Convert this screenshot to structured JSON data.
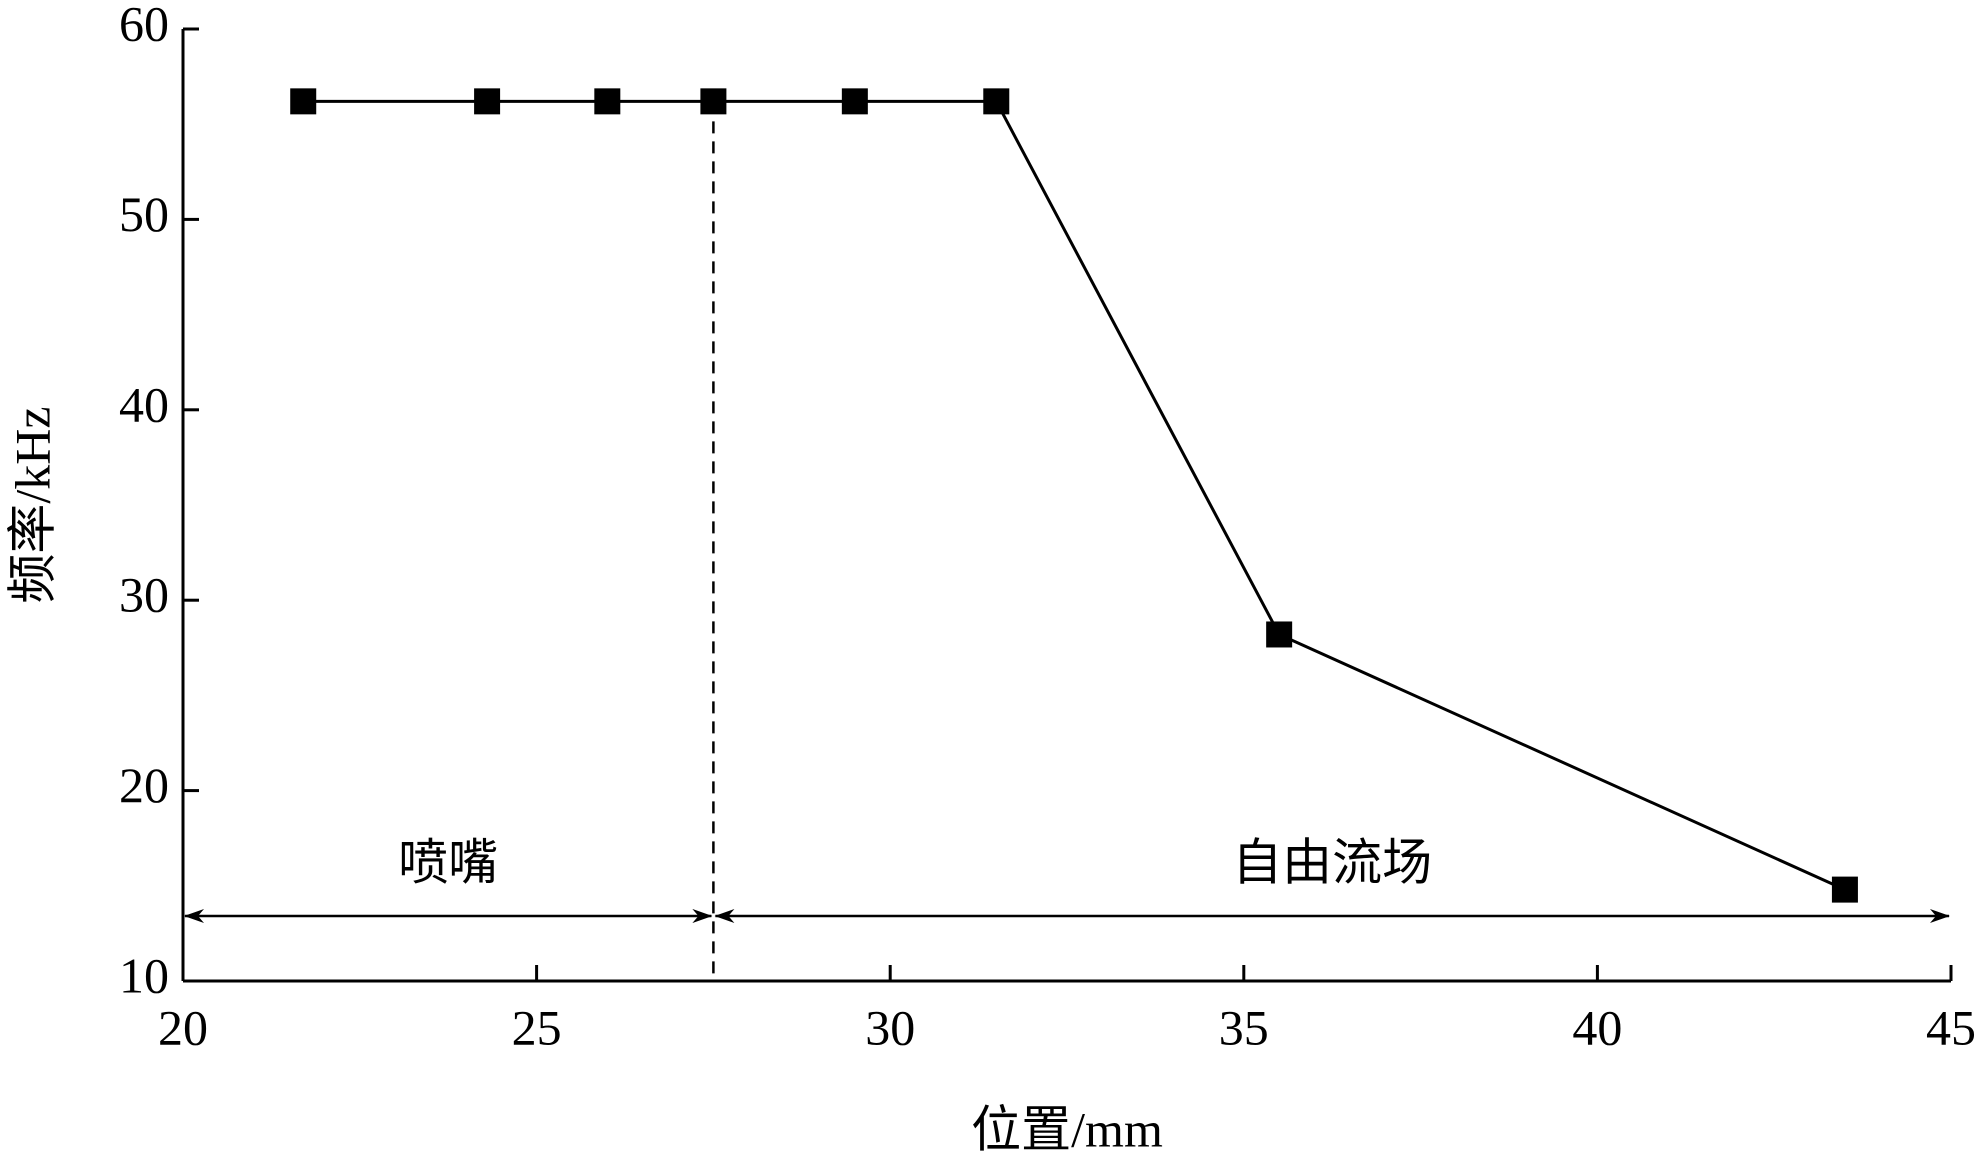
{
  "chart_data": {
    "type": "line",
    "x_label": "位置/mm",
    "y_label": "频率/kHz",
    "x": [
      21.7,
      24.3,
      26.0,
      27.5,
      29.5,
      31.5,
      35.5,
      43.5
    ],
    "series": [
      {
        "color": "#000000",
        "values": [
          56.2,
          56.2,
          56.2,
          56.2,
          56.2,
          56.2,
          28.2,
          14.8
        ]
      }
    ],
    "xlim": [
      20,
      45
    ],
    "xticks": [
      20,
      25,
      30,
      35,
      40,
      45
    ],
    "ylim": [
      10,
      60
    ],
    "yticks": [
      10,
      20,
      30,
      40,
      50,
      60
    ],
    "divider_x": 27.5,
    "regions": [
      "喷嘴",
      "自由流场"
    ],
    "grid": false
  }
}
